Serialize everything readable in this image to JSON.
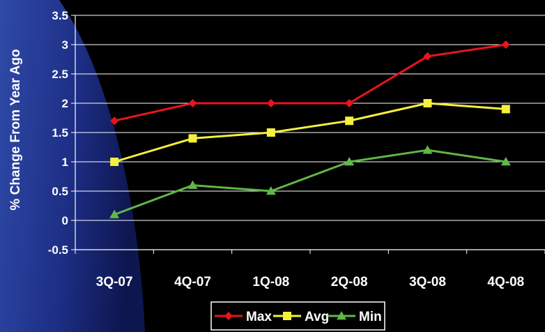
{
  "chart_data": {
    "type": "line",
    "title": "",
    "xlabel": "",
    "ylabel": "% Change From Year Ago",
    "categories": [
      "3Q-07",
      "4Q-07",
      "1Q-08",
      "2Q-08",
      "3Q-08",
      "4Q-08"
    ],
    "yticks": [
      "3.5",
      "3",
      "2.5",
      "2",
      "1.5",
      "1",
      "0.5",
      "0",
      "-0.5"
    ],
    "ylim": [
      -0.5,
      3.5
    ],
    "grid": true,
    "legend": "bottom-center",
    "series": [
      {
        "name": "Max",
        "values": [
          1.7,
          2.0,
          2.0,
          2.0,
          2.8,
          3.0
        ],
        "color": "#e8141c",
        "marker": "diamond"
      },
      {
        "name": "Avg",
        "values": [
          1.0,
          1.4,
          1.5,
          1.7,
          2.0,
          1.9
        ],
        "color": "#f5f03c",
        "marker": "square"
      },
      {
        "name": "Min",
        "values": [
          0.1,
          0.6,
          0.5,
          1.0,
          1.2,
          1.0
        ],
        "color": "#5fb848",
        "marker": "triangle"
      }
    ]
  }
}
